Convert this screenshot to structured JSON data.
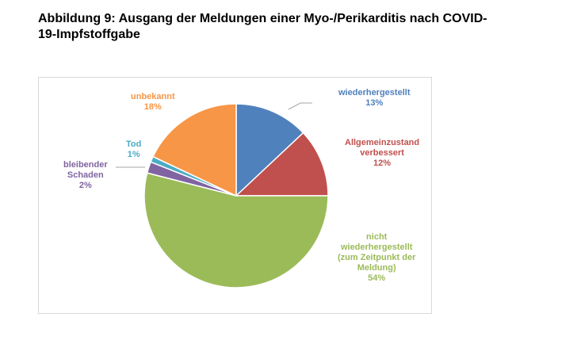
{
  "page": {
    "heading_line1": "Abbildung 9: Ausgang der Meldungen einer Myo-/Perikarditis nach COVID-",
    "heading_line2": "19-Impfstoffgabe"
  },
  "chart_data": {
    "type": "pie",
    "title": "",
    "start_angle_deg": 0,
    "direction": "clockwise",
    "slices": [
      {
        "key": "wiederhergestellt",
        "lines": [
          "wiederhergestellt"
        ],
        "pct_label": "13%",
        "value": 13,
        "color": "#4f81bd"
      },
      {
        "key": "verbessert",
        "lines": [
          "Allgemeinzustand",
          "verbessert"
        ],
        "pct_label": "12%",
        "value": 12,
        "color": "#c0504d"
      },
      {
        "key": "nicht-wiederhergestellt",
        "lines": [
          "nicht",
          "wiederhergestellt",
          "(zum Zeitpunkt der",
          "Meldung)"
        ],
        "pct_label": "54%",
        "value": 54,
        "color": "#9bbb59"
      },
      {
        "key": "bleibender-schaden",
        "lines": [
          "bleibender",
          "Schaden"
        ],
        "pct_label": "2%",
        "value": 2,
        "color": "#8064a2"
      },
      {
        "key": "tod",
        "lines": [
          "Tod"
        ],
        "pct_label": "1%",
        "value": 1,
        "color": "#4bacc6"
      },
      {
        "key": "unbekannt",
        "lines": [
          "unbekannt"
        ],
        "pct_label": "18%",
        "value": 18,
        "color": "#f79646"
      }
    ]
  }
}
